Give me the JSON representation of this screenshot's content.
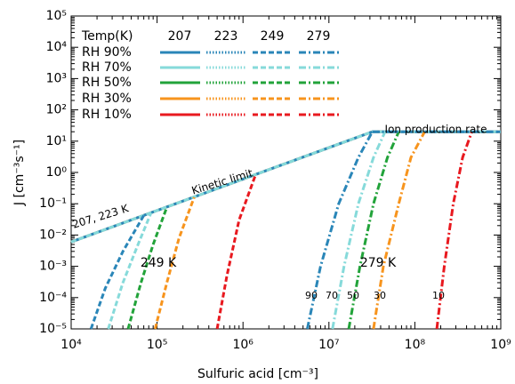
{
  "chart_data": {
    "type": "line",
    "xlabel": "Sulfuric acid [cm⁻³]",
    "ylabel": "J [cm⁻³s⁻¹]",
    "xscale": "log",
    "yscale": "log",
    "xlim": [
      10000,
      1000000000
    ],
    "ylim": [
      1e-05,
      100000
    ],
    "xticks": [
      {
        "value": 10000,
        "label": "10⁴"
      },
      {
        "value": 100000,
        "label": "10⁵"
      },
      {
        "value": 1000000,
        "label": "10⁶"
      },
      {
        "value": 10000000,
        "label": "10⁷"
      },
      {
        "value": 100000000,
        "label": "10⁸"
      },
      {
        "value": 1000000000,
        "label": "10⁹"
      }
    ],
    "yticks": [
      {
        "value": 1e-05,
        "label": "10⁻⁵"
      },
      {
        "value": 0.0001,
        "label": "10⁻⁴"
      },
      {
        "value": 0.001,
        "label": "10⁻³"
      },
      {
        "value": 0.01,
        "label": "10⁻²"
      },
      {
        "value": 0.1,
        "label": "10⁻¹"
      },
      {
        "value": 1,
        "label": "10⁰"
      },
      {
        "value": 10,
        "label": "10¹"
      },
      {
        "value": 100,
        "label": "10²"
      },
      {
        "value": 1000,
        "label": "10³"
      },
      {
        "value": 10000,
        "label": "10⁴"
      },
      {
        "value": 100000,
        "label": "10⁵"
      }
    ],
    "legend": {
      "title": "Temp(K)",
      "columns": [
        {
          "label": "207",
          "dash": "solid"
        },
        {
          "label": "223",
          "dash": "dotted"
        },
        {
          "label": "249",
          "dash": "dashed"
        },
        {
          "label": "279",
          "dash": "dashdot"
        }
      ],
      "rows": [
        {
          "label": "RH 90%",
          "color": "#2a86b8"
        },
        {
          "label": "RH 70%",
          "color": "#86dada"
        },
        {
          "label": "RH 50%",
          "color": "#22a33a"
        },
        {
          "label": "RH 30%",
          "color": "#f7941d"
        },
        {
          "label": "RH 10%",
          "color": "#e8191f"
        }
      ]
    },
    "annotations": [
      "Ion production rate",
      "Kinetic limit",
      "207, 223 K",
      "249 K",
      "279 K",
      "90",
      "70",
      "50",
      "30",
      "10"
    ],
    "series": [
      {
        "color": "#f7941d",
        "dash": "solid",
        "x": [
          10000,
          32000000,
          1000000000
        ],
        "y": [
          0.006,
          20,
          20
        ]
      },
      {
        "color": "#2a86b8",
        "dash": "solid",
        "x": [
          10000,
          32000000,
          1000000000
        ],
        "y": [
          0.006,
          20,
          20
        ]
      },
      {
        "color": "#86dada",
        "dash": "dashed",
        "x": [
          10000,
          32000000,
          1000000000
        ],
        "y": [
          0.006,
          20,
          20
        ]
      },
      {
        "color": "#2a86b8",
        "dash": "dashed",
        "x": [
          17000,
          25000,
          40000,
          70000
        ],
        "y": [
          1e-05,
          0.0002,
          0.003,
          0.042
        ]
      },
      {
        "color": "#86dada",
        "dash": "dashed",
        "x": [
          27000,
          40000,
          60000,
          85000
        ],
        "y": [
          1e-05,
          0.0003,
          0.005,
          0.051
        ]
      },
      {
        "color": "#22a33a",
        "dash": "dashed",
        "x": [
          46000,
          65000,
          90000,
          130000
        ],
        "y": [
          1e-05,
          0.0003,
          0.005,
          0.078
        ]
      },
      {
        "color": "#f7941d",
        "dash": "dashed",
        "x": [
          95000,
          130000,
          180000,
          270000
        ],
        "y": [
          1e-05,
          0.0003,
          0.008,
          0.16
        ]
      },
      {
        "color": "#e8191f",
        "dash": "dashed",
        "x": [
          500000,
          650000,
          900000,
          1400000
        ],
        "y": [
          1e-05,
          0.0005,
          0.03,
          0.84
        ]
      },
      {
        "color": "#2a86b8",
        "dash": "dashdot",
        "x": [
          5600000,
          8000000,
          13000000,
          22000000,
          32000000
        ],
        "y": [
          1e-05,
          0.001,
          0.1,
          3,
          20
        ]
      },
      {
        "color": "#86dada",
        "dash": "dashdot",
        "x": [
          11000000,
          15000000,
          22000000,
          33000000,
          45000000
        ],
        "y": [
          1e-05,
          0.001,
          0.1,
          3,
          20
        ]
      },
      {
        "color": "#22a33a",
        "dash": "dashdot",
        "x": [
          17000000,
          23000000,
          33000000,
          48000000,
          65000000
        ],
        "y": [
          1e-05,
          0.001,
          0.1,
          3,
          20
        ]
      },
      {
        "color": "#f7941d",
        "dash": "dashdot",
        "x": [
          33000000,
          43000000,
          65000000,
          90000000,
          130000000
        ],
        "y": [
          1e-05,
          0.001,
          0.1,
          3,
          20
        ]
      },
      {
        "color": "#e8191f",
        "dash": "dashdot",
        "x": [
          180000000,
          220000000,
          280000000,
          360000000,
          460000000
        ],
        "y": [
          1e-05,
          0.001,
          0.1,
          3,
          20
        ]
      },
      {
        "color": "#2a86b8",
        "dash": "dashdot",
        "x": [
          32000000,
          1000000000
        ],
        "y": [
          20,
          20
        ]
      }
    ]
  }
}
